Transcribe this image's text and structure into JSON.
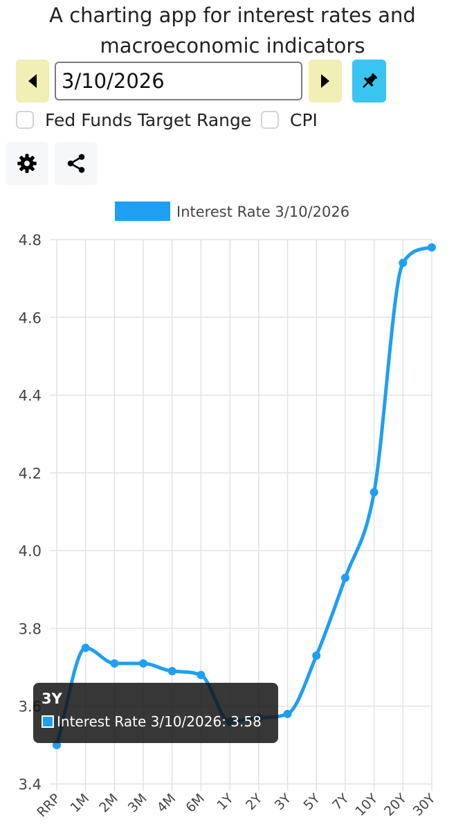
{
  "header": {
    "title_line1": "A charting app for interest rates and",
    "title_line2": "macroeconomic indicators"
  },
  "controls": {
    "date_value": "3/10/2026",
    "prev_icon": "caret-left-icon",
    "next_icon": "caret-right-icon",
    "pin_icon": "pin-icon",
    "checkboxes": [
      {
        "label": "Fed Funds Target Range",
        "checked": false
      },
      {
        "label": "CPI",
        "checked": false
      }
    ],
    "settings_icon": "gear-icon",
    "share_icon": "share-icon"
  },
  "colors": {
    "series": "#1e9ff2",
    "nav_button": "#f1eeb6",
    "pin_button": "#38c6f0"
  },
  "chart_data": {
    "type": "line",
    "categories": [
      "RRP",
      "1M",
      "2M",
      "3M",
      "4M",
      "6M",
      "1Y",
      "2Y",
      "3Y",
      "5Y",
      "7Y",
      "10Y",
      "20Y",
      "30Y"
    ],
    "series": [
      {
        "name": "Interest Rate 3/10/2026",
        "values": [
          3.5,
          3.75,
          3.71,
          3.71,
          3.69,
          3.68,
          3.56,
          3.57,
          3.58,
          3.73,
          3.93,
          4.15,
          4.74,
          4.78
        ]
      }
    ],
    "ylim": [
      3.4,
      4.8
    ],
    "yticks": [
      "3.4",
      "3.6",
      "3.8",
      "4.0",
      "4.2",
      "4.4",
      "4.6",
      "4.8"
    ],
    "grid": true,
    "legend_position": "top"
  },
  "tooltip": {
    "title": "3Y",
    "text": "Interest Rate 3/10/2026: 3.58"
  }
}
